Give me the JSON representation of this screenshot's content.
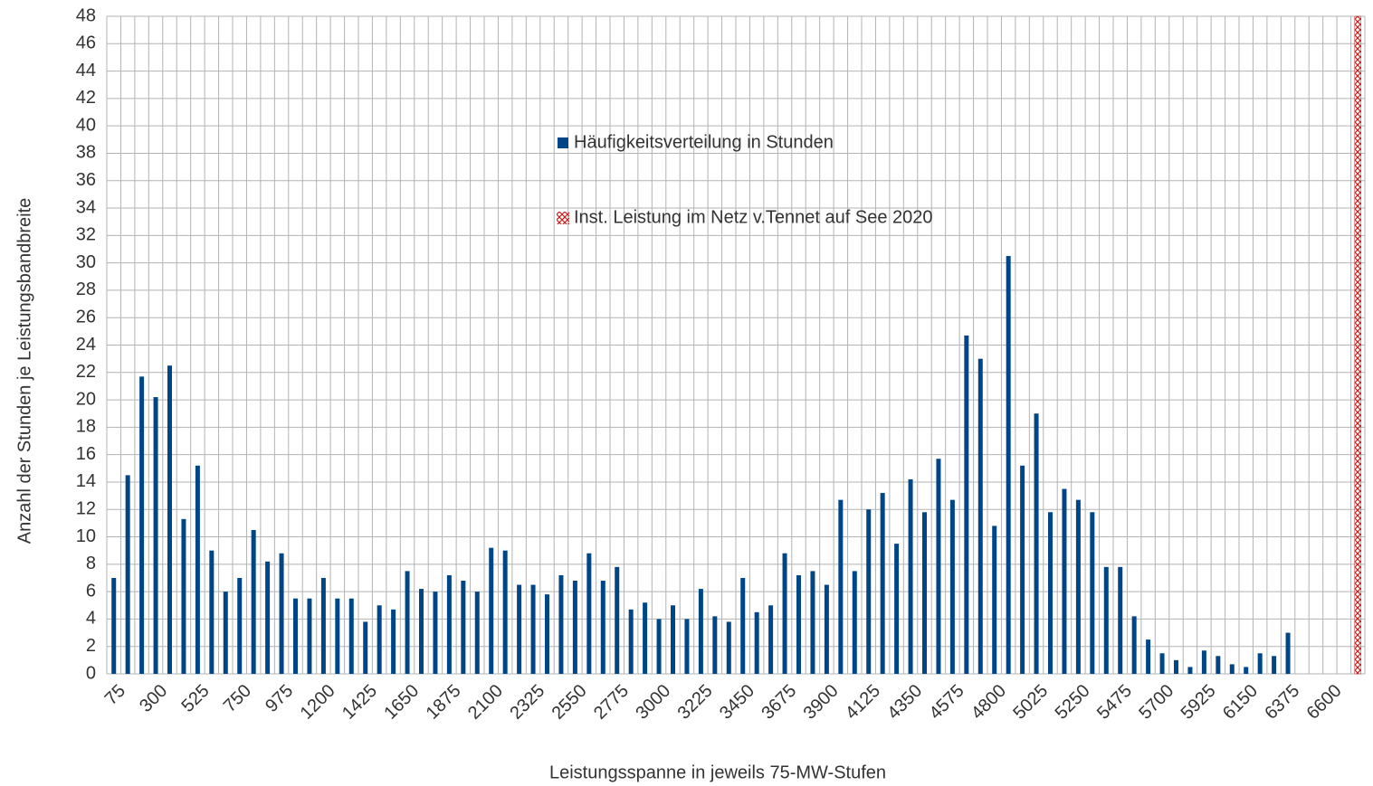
{
  "chart_data": {
    "type": "bar",
    "y_label": "Anzahl der Stunden je Leistungsbandbreite",
    "x_label": "Leistungsspanne in jeweils 75-MW-Stufen",
    "categories": [
      "75",
      null,
      null,
      "300",
      null,
      null,
      "525",
      null,
      null,
      "750",
      null,
      null,
      "975",
      null,
      null,
      "1200",
      null,
      null,
      "1425",
      null,
      null,
      "1650",
      null,
      null,
      "1875",
      null,
      null,
      "2100",
      null,
      null,
      "2325",
      null,
      null,
      "2550",
      null,
      null,
      "2775",
      null,
      null,
      "3000",
      null,
      null,
      "3225",
      null,
      null,
      "3450",
      null,
      null,
      "3675",
      null,
      null,
      "3900",
      null,
      null,
      "4125",
      null,
      null,
      "4350",
      null,
      null,
      "4575",
      null,
      null,
      "4800",
      null,
      null,
      "5025",
      null,
      null,
      "5250",
      null,
      null,
      "5475",
      null,
      null,
      "5700",
      null,
      null,
      "5925",
      null,
      null,
      "6150",
      null,
      null,
      "6375",
      null,
      null,
      "6600",
      null,
      null
    ],
    "series": [
      {
        "name": "Häufigkeitsverteilung in Stunden",
        "color": "#004586",
        "values": [
          7,
          14.5,
          21.7,
          20.2,
          22.5,
          11.3,
          15.2,
          9,
          6,
          7,
          10.5,
          8.2,
          8.8,
          5.5,
          5.5,
          7,
          5.5,
          5.5,
          3.8,
          5,
          4.7,
          7.5,
          6.2,
          6,
          7.2,
          6.8,
          6,
          9.2,
          9,
          6.5,
          6.5,
          5.8,
          7.2,
          6.8,
          8.8,
          6.8,
          7.8,
          4.7,
          5.2,
          4,
          5,
          4,
          6.2,
          4.2,
          3.8,
          7,
          4.5,
          5,
          8.8,
          7.2,
          7.5,
          6.5,
          12.7,
          7.5,
          12,
          13.2,
          9.5,
          14.2,
          11.8,
          15.7,
          12.7,
          24.7,
          23,
          10.8,
          30.5,
          15.2,
          19,
          11.8,
          13.5,
          12.7,
          11.8,
          7.8,
          7.8,
          4.2,
          2.5,
          1.5,
          1,
          0.5,
          1.7,
          1.3,
          0.7,
          0.5,
          1.5,
          1.3,
          3,
          null,
          null,
          null,
          null,
          null
        ]
      },
      {
        "name": "Inst. Leistung im Netz v.Tennet auf See 2020",
        "color": "#c9211e",
        "values": [
          null,
          null,
          null,
          null,
          null,
          null,
          null,
          null,
          null,
          null,
          null,
          null,
          null,
          null,
          null,
          null,
          null,
          null,
          null,
          null,
          null,
          null,
          null,
          null,
          null,
          null,
          null,
          null,
          null,
          null,
          null,
          null,
          null,
          null,
          null,
          null,
          null,
          null,
          null,
          null,
          null,
          null,
          null,
          null,
          null,
          null,
          null,
          null,
          null,
          null,
          null,
          null,
          null,
          null,
          null,
          null,
          null,
          null,
          null,
          null,
          null,
          null,
          null,
          null,
          null,
          null,
          null,
          null,
          null,
          null,
          null,
          null,
          null,
          null,
          null,
          null,
          null,
          null,
          null,
          null,
          null,
          null,
          null,
          null,
          null,
          null,
          null,
          null,
          null,
          48
        ]
      }
    ],
    "ylim": [
      0,
      48
    ],
    "yticks": [
      0,
      2,
      4,
      6,
      8,
      10,
      12,
      14,
      16,
      18,
      20,
      22,
      24,
      26,
      28,
      30,
      32,
      34,
      36,
      38,
      40,
      42,
      44,
      46,
      48
    ],
    "grid": true
  }
}
